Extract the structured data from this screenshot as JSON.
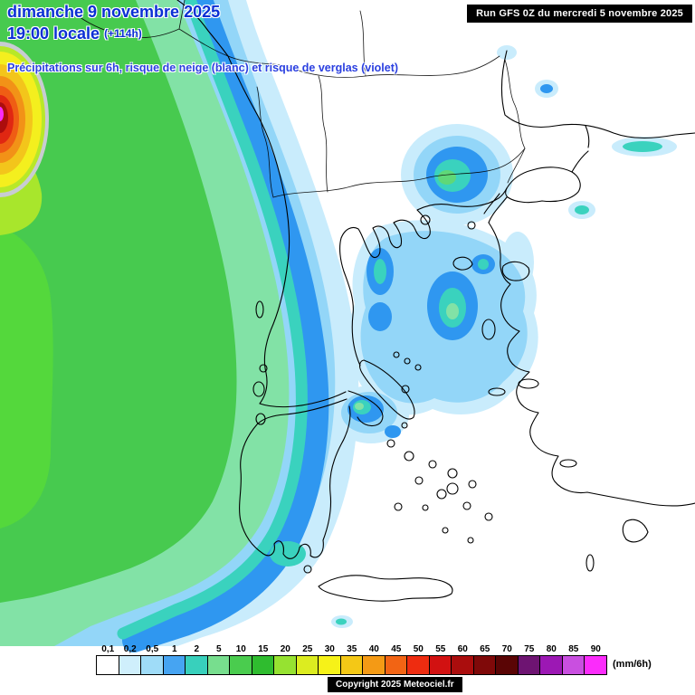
{
  "header": {
    "date_line": "dimanche 9 novembre 2025",
    "time_line": "19:00 locale",
    "offset": "(+114h)",
    "subtitle": "Précipitations sur 6h, risque de neige (blanc) et risque de verglas (violet)",
    "run_info": "Run GFS 0Z du mercredi 5 novembre 2025"
  },
  "footer": {
    "copyright": "Copyright 2025 Meteociel.fr"
  },
  "legend": {
    "unit": "(mm/6h)",
    "stops": [
      {
        "label": "0,1",
        "color": "#ffffff"
      },
      {
        "label": "0,2",
        "color": "#cfeffc"
      },
      {
        "label": "0,5",
        "color": "#9fdcf8"
      },
      {
        "label": "1",
        "color": "#46a4f2"
      },
      {
        "label": "2",
        "color": "#38d0bc"
      },
      {
        "label": "5",
        "color": "#77de8e"
      },
      {
        "label": "10",
        "color": "#4acc4e"
      },
      {
        "label": "15",
        "color": "#2fbc2f"
      },
      {
        "label": "20",
        "color": "#96e231"
      },
      {
        "label": "25",
        "color": "#dcec20"
      },
      {
        "label": "30",
        "color": "#f6f218"
      },
      {
        "label": "35",
        "color": "#f4c816"
      },
      {
        "label": "40",
        "color": "#f49a15"
      },
      {
        "label": "45",
        "color": "#f26414"
      },
      {
        "label": "50",
        "color": "#ee2c10"
      },
      {
        "label": "55",
        "color": "#d21111"
      },
      {
        "label": "60",
        "color": "#aa0d0d"
      },
      {
        "label": "65",
        "color": "#7f0909"
      },
      {
        "label": "70",
        "color": "#5a0505"
      },
      {
        "label": "75",
        "color": "#6e1472"
      },
      {
        "label": "80",
        "color": "#9c18b4"
      },
      {
        "label": "85",
        "color": "#c94fe0"
      },
      {
        "label": "90",
        "color": "#fb2cfb"
      }
    ]
  }
}
